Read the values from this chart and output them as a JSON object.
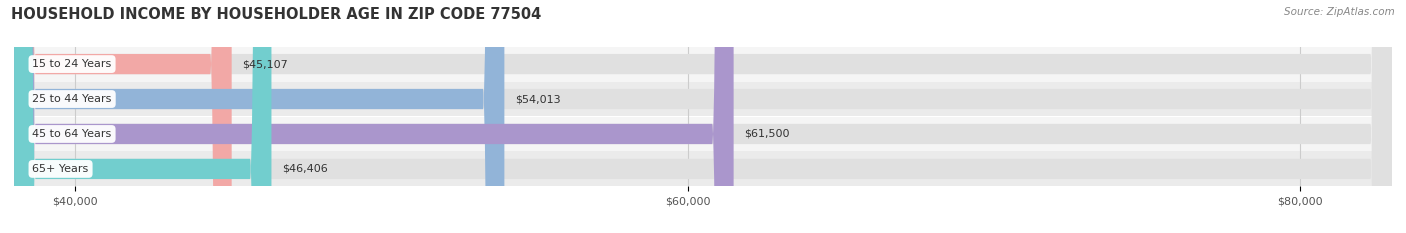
{
  "title": "HOUSEHOLD INCOME BY HOUSEHOLDER AGE IN ZIP CODE 77504",
  "source": "Source: ZipAtlas.com",
  "categories": [
    "15 to 24 Years",
    "25 to 44 Years",
    "45 to 64 Years",
    "65+ Years"
  ],
  "values": [
    45107,
    54013,
    61500,
    46406
  ],
  "value_labels": [
    "$45,107",
    "$54,013",
    "$61,500",
    "$46,406"
  ],
  "bar_colors": [
    "#f2a8a6",
    "#92b4d8",
    "#aa96cc",
    "#72cece"
  ],
  "xmin": 38000,
  "xmax": 83000,
  "xticks": [
    40000,
    60000,
    80000
  ],
  "xtick_labels": [
    "$40,000",
    "$60,000",
    "$80,000"
  ],
  "title_fontsize": 10.5,
  "source_fontsize": 7.5,
  "label_fontsize": 8,
  "tick_fontsize": 8,
  "background_color": "#ffffff",
  "bar_height": 0.58,
  "row_bg_colors": [
    "#f5f5f5",
    "#ebebeb",
    "#f5f5f5",
    "#ebebeb"
  ]
}
